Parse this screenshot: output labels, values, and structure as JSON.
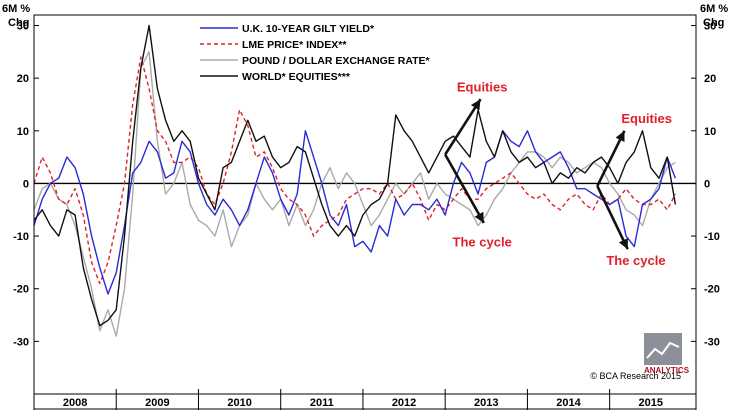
{
  "chart_data": {
    "type": "line",
    "y_axis_title_lines": [
      "6M %",
      "Chg"
    ],
    "ylim": [
      -40,
      32
    ],
    "yticks": [
      30,
      20,
      10,
      0,
      -10,
      -20,
      -30
    ],
    "xlim": [
      2007.5,
      2015.55
    ],
    "xtick_labels": [
      "2008",
      "2009",
      "2010",
      "2011",
      "2012",
      "2013",
      "2014",
      "2015"
    ],
    "xtick_centers": [
      2008.0,
      2009.0,
      2010.0,
      2011.0,
      2012.0,
      2013.0,
      2014.0,
      2015.0
    ],
    "year_boundaries": [
      2008.5,
      2009.5,
      2010.5,
      2011.5,
      2012.5,
      2013.5,
      2014.5
    ],
    "zero_line": 0,
    "legend": {
      "placement": "top-center",
      "entries": [
        {
          "label": "U.K. 10-YEAR GILT YIELD*",
          "color": "#2a2ad6",
          "style": "solid"
        },
        {
          "label": "LME PRICE* INDEX**",
          "color": "#e0202a",
          "style": "dashed"
        },
        {
          "label": "POUND / DOLLAR EXCHANGE RATE*",
          "color": "#aaaaaa",
          "style": "solid"
        },
        {
          "label": "WORLD* EQUITIES***",
          "color": "#111111",
          "style": "solid"
        }
      ]
    },
    "series": [
      {
        "name": "U.K. 10-YEAR GILT YIELD*",
        "color": "#2a2ad6",
        "x": [
          2007.5,
          2007.6,
          2007.7,
          2007.8,
          2007.9,
          2008.0,
          2008.1,
          2008.2,
          2008.3,
          2008.4,
          2008.5,
          2008.6,
          2008.7,
          2008.8,
          2008.9,
          2009.0,
          2009.1,
          2009.2,
          2009.3,
          2009.4,
          2009.5,
          2009.6,
          2009.7,
          2009.8,
          2009.9,
          2010.0,
          2010.1,
          2010.2,
          2010.3,
          2010.4,
          2010.5,
          2010.6,
          2010.7,
          2010.8,
          2010.9,
          2011.0,
          2011.1,
          2011.2,
          2011.3,
          2011.4,
          2011.5,
          2011.6,
          2011.7,
          2011.8,
          2011.9,
          2012.0,
          2012.1,
          2012.2,
          2012.3,
          2012.4,
          2012.5,
          2012.6,
          2012.7,
          2012.8,
          2012.9,
          2013.0,
          2013.1,
          2013.2,
          2013.3,
          2013.4,
          2013.5,
          2013.6,
          2013.7,
          2013.8,
          2013.9,
          2014.0,
          2014.1,
          2014.2,
          2014.3,
          2014.4,
          2014.5,
          2014.6,
          2014.7,
          2014.8,
          2014.9,
          2015.0,
          2015.1,
          2015.2,
          2015.3
        ],
        "values": [
          -8,
          -3,
          0,
          1,
          5,
          3,
          -2,
          -10,
          -16,
          -21,
          -17,
          -8,
          2,
          4,
          8,
          6,
          1,
          2,
          8,
          6,
          0,
          -4,
          -6,
          -3,
          -5,
          -8,
          -5,
          0,
          5,
          2,
          -3,
          -6,
          -2,
          10,
          5,
          0,
          -6,
          -8,
          -4,
          -12,
          -11,
          -13,
          -8,
          -10,
          -3,
          -6,
          -4,
          -4,
          -5,
          -3,
          -6,
          0,
          4,
          2,
          -2,
          4,
          5,
          10,
          8,
          7,
          10,
          6,
          4,
          5,
          6,
          3,
          -1,
          -1,
          -2,
          -3,
          -4,
          -3,
          -10,
          -12,
          -4,
          -3,
          -1,
          5,
          1
        ]
      },
      {
        "name": "LME PRICE* INDEX**",
        "color": "#e0202a",
        "x": [
          2007.5,
          2007.6,
          2007.7,
          2007.8,
          2007.9,
          2008.0,
          2008.1,
          2008.2,
          2008.3,
          2008.4,
          2008.5,
          2008.6,
          2008.7,
          2008.8,
          2008.9,
          2009.0,
          2009.1,
          2009.2,
          2009.3,
          2009.4,
          2009.5,
          2009.6,
          2009.7,
          2009.8,
          2009.9,
          2010.0,
          2010.1,
          2010.2,
          2010.3,
          2010.4,
          2010.5,
          2010.6,
          2010.7,
          2010.8,
          2010.9,
          2011.0,
          2011.1,
          2011.2,
          2011.3,
          2011.4,
          2011.5,
          2011.6,
          2011.7,
          2011.8,
          2011.9,
          2012.0,
          2012.1,
          2012.2,
          2012.3,
          2012.4,
          2012.5,
          2012.6,
          2012.7,
          2012.8,
          2012.9,
          2013.0,
          2013.1,
          2013.2,
          2013.3,
          2013.4,
          2013.5,
          2013.6,
          2013.7,
          2013.8,
          2013.9,
          2014.0,
          2014.1,
          2014.2,
          2014.3,
          2014.4,
          2014.5,
          2014.6,
          2014.7,
          2014.8,
          2014.9,
          2015.0,
          2015.1,
          2015.2,
          2015.3
        ],
        "values": [
          0,
          5,
          2,
          -3,
          -4,
          -1,
          -6,
          -15,
          -19,
          -15,
          -8,
          0,
          15,
          24,
          18,
          10,
          8,
          4,
          4,
          5,
          3,
          -2,
          -4,
          0,
          6,
          14,
          11,
          5,
          6,
          3,
          -1,
          -3,
          -4,
          -6,
          -10,
          -8,
          -7,
          -6,
          -3,
          -2,
          -1,
          -1,
          -2,
          0,
          -3,
          -2,
          0,
          -3,
          -7,
          -4,
          -5,
          -3,
          -1,
          -3,
          -3,
          -1,
          0,
          1,
          2,
          0,
          -2,
          -3,
          -2,
          -4,
          -5,
          -3,
          -2,
          -4,
          -5,
          -2,
          -4,
          -3,
          -1,
          -3,
          -4,
          -4,
          -3,
          -5,
          -2
        ]
      },
      {
        "name": "POUND / DOLLAR EXCHANGE RATE*",
        "color": "#aaaaaa",
        "x": [
          2007.5,
          2007.6,
          2007.7,
          2007.8,
          2007.9,
          2008.0,
          2008.1,
          2008.2,
          2008.3,
          2008.4,
          2008.5,
          2008.6,
          2008.7,
          2008.8,
          2008.9,
          2009.0,
          2009.1,
          2009.2,
          2009.3,
          2009.4,
          2009.5,
          2009.6,
          2009.7,
          2009.8,
          2009.9,
          2010.0,
          2010.1,
          2010.2,
          2010.3,
          2010.4,
          2010.5,
          2010.6,
          2010.7,
          2010.8,
          2010.9,
          2011.0,
          2011.1,
          2011.2,
          2011.3,
          2011.4,
          2011.5,
          2011.6,
          2011.7,
          2011.8,
          2011.9,
          2012.0,
          2012.1,
          2012.2,
          2012.3,
          2012.4,
          2012.5,
          2012.6,
          2012.7,
          2012.8,
          2012.9,
          2013.0,
          2013.1,
          2013.2,
          2013.3,
          2013.4,
          2013.5,
          2013.6,
          2013.7,
          2013.8,
          2013.9,
          2014.0,
          2014.1,
          2014.2,
          2014.3,
          2014.4,
          2014.5,
          2014.6,
          2014.7,
          2014.8,
          2014.9,
          2015.0,
          2015.1,
          2015.2,
          2015.3
        ],
        "values": [
          -5,
          -1,
          0,
          -3,
          -4,
          -8,
          -14,
          -20,
          -28,
          -24,
          -29,
          -20,
          -2,
          22,
          25,
          8,
          -2,
          0,
          4,
          -4,
          -7,
          -8,
          -10,
          -5,
          -12,
          -8,
          -6,
          0,
          -3,
          -5,
          -3,
          -8,
          -4,
          -8,
          -5,
          0,
          3,
          -1,
          2,
          0,
          -4,
          -8,
          -6,
          -3,
          0,
          -2,
          0,
          2,
          -3,
          0,
          -2,
          -3,
          -4,
          -5,
          -8,
          -6,
          -3,
          -1,
          2,
          4,
          6,
          6,
          5,
          3,
          5,
          4,
          2,
          3,
          4,
          3,
          0,
          -2,
          -5,
          -6,
          -8,
          -3,
          0,
          3,
          4
        ]
      },
      {
        "name": "WORLD* EQUITIES***",
        "color": "#111111",
        "x": [
          2007.5,
          2007.6,
          2007.7,
          2007.8,
          2007.9,
          2008.0,
          2008.1,
          2008.2,
          2008.3,
          2008.4,
          2008.5,
          2008.6,
          2008.7,
          2008.8,
          2008.9,
          2009.0,
          2009.1,
          2009.2,
          2009.3,
          2009.4,
          2009.5,
          2009.6,
          2009.7,
          2009.8,
          2009.9,
          2010.0,
          2010.1,
          2010.2,
          2010.3,
          2010.4,
          2010.5,
          2010.6,
          2010.7,
          2010.8,
          2010.9,
          2011.0,
          2011.1,
          2011.2,
          2011.3,
          2011.4,
          2011.5,
          2011.6,
          2011.7,
          2011.8,
          2011.9,
          2012.0,
          2012.1,
          2012.2,
          2012.3,
          2012.4,
          2012.5,
          2012.6,
          2012.7,
          2012.8,
          2012.9,
          2013.0,
          2013.1,
          2013.2,
          2013.3,
          2013.4,
          2013.5,
          2013.6,
          2013.7,
          2013.8,
          2013.9,
          2014.0,
          2014.1,
          2014.2,
          2014.3,
          2014.4,
          2014.5,
          2014.6,
          2014.7,
          2014.8,
          2014.9,
          2015.0,
          2015.1,
          2015.2,
          2015.3
        ],
        "values": [
          -7,
          -5,
          -8,
          -10,
          -5,
          -6,
          -16,
          -22,
          -27,
          -26,
          -24,
          -10,
          8,
          22,
          30,
          18,
          12,
          8,
          10,
          8,
          1,
          -2,
          -5,
          3,
          4,
          8,
          12,
          8,
          9,
          5,
          3,
          4,
          7,
          6,
          1,
          -4,
          -8,
          -10,
          -8,
          -10,
          -6,
          -4,
          -3,
          0,
          13,
          10,
          8,
          5,
          2,
          5,
          8,
          9,
          7,
          5,
          14,
          8,
          5,
          10,
          6,
          4,
          5,
          3,
          4,
          0,
          2,
          1,
          3,
          2,
          4,
          5,
          3,
          0,
          4,
          6,
          10,
          3,
          1,
          5,
          -4
        ]
      }
    ],
    "annotations": [
      {
        "text": "Equities",
        "color": "#e0202a",
        "x": 2012.95,
        "y": 17.5
      },
      {
        "text": "The cycle",
        "color": "#e0202a",
        "x": 2012.95,
        "y": -12
      },
      {
        "text": "Equities",
        "color": "#e0202a",
        "x": 2014.95,
        "y": 11.5
      },
      {
        "text": "The cycle",
        "color": "#e0202a",
        "x": 2014.82,
        "y": -15.5
      }
    ],
    "arrows": [
      {
        "from": [
          2012.5,
          5.5
        ],
        "to": [
          2012.93,
          16
        ]
      },
      {
        "from": [
          2012.5,
          5.5
        ],
        "to": [
          2012.97,
          -7.5
        ]
      },
      {
        "from": [
          2014.35,
          -0.5
        ],
        "to": [
          2014.68,
          10
        ]
      },
      {
        "from": [
          2014.35,
          -0.5
        ],
        "to": [
          2014.72,
          -12.5
        ]
      }
    ],
    "logo": {
      "text": "ANALYTICS",
      "color": "#b01020"
    },
    "source_note": "© BCA Research 2015"
  }
}
